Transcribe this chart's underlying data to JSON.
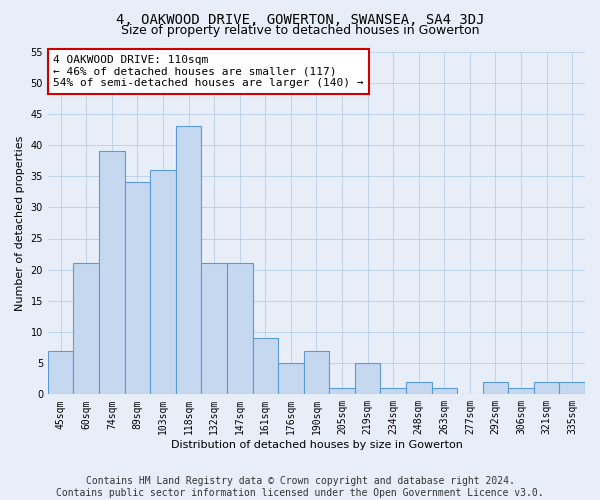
{
  "title": "4, OAKWOOD DRIVE, GOWERTON, SWANSEA, SA4 3DJ",
  "subtitle": "Size of property relative to detached houses in Gowerton",
  "xlabel": "Distribution of detached houses by size in Gowerton",
  "ylabel": "Number of detached properties",
  "categories": [
    "45sqm",
    "60sqm",
    "74sqm",
    "89sqm",
    "103sqm",
    "118sqm",
    "132sqm",
    "147sqm",
    "161sqm",
    "176sqm",
    "190sqm",
    "205sqm",
    "219sqm",
    "234sqm",
    "248sqm",
    "263sqm",
    "277sqm",
    "292sqm",
    "306sqm",
    "321sqm",
    "335sqm"
  ],
  "values": [
    7,
    21,
    39,
    34,
    36,
    43,
    21,
    21,
    9,
    5,
    7,
    1,
    5,
    1,
    2,
    1,
    0,
    2,
    1,
    2,
    2
  ],
  "bar_color": "#c5d8f0",
  "bar_edge_color": "#5b9bd5",
  "annotation_text": "4 OAKWOOD DRIVE: 110sqm\n← 46% of detached houses are smaller (117)\n54% of semi-detached houses are larger (140) →",
  "annotation_box_color": "#ffffff",
  "annotation_box_edge_color": "#cc0000",
  "ylim": [
    0,
    55
  ],
  "yticks": [
    0,
    5,
    10,
    15,
    20,
    25,
    30,
    35,
    40,
    45,
    50,
    55
  ],
  "grid_color": "#b8cfe8",
  "background_color": "#e8eef8",
  "footer_line1": "Contains HM Land Registry data © Crown copyright and database right 2024.",
  "footer_line2": "Contains public sector information licensed under the Open Government Licence v3.0.",
  "title_fontsize": 10,
  "subtitle_fontsize": 9,
  "label_fontsize": 8,
  "tick_fontsize": 7,
  "footer_fontsize": 7,
  "ann_fontsize": 8
}
